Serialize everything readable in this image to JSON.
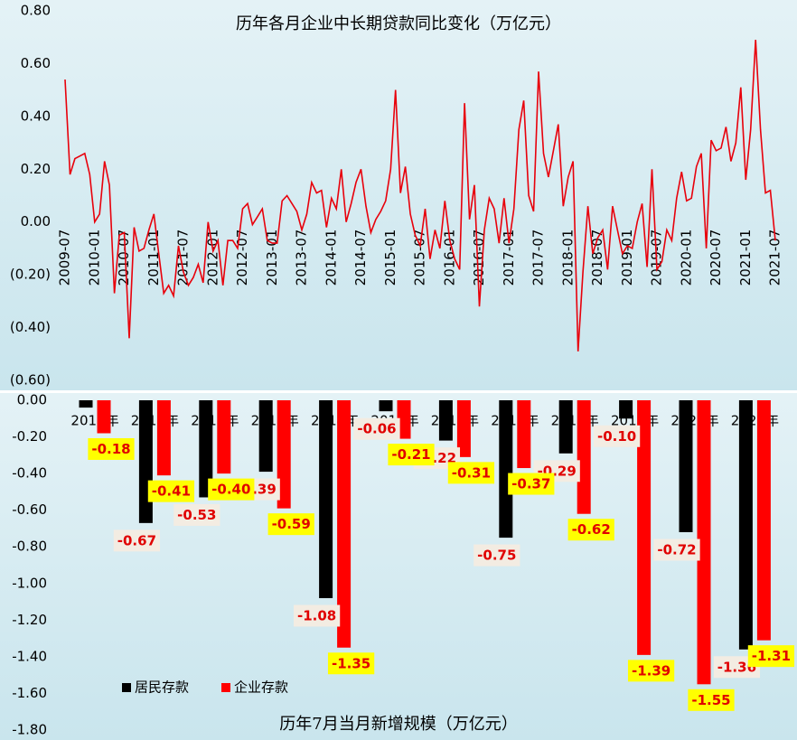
{
  "chart_data": [
    {
      "type": "line",
      "title": "历年各月企业中长期贷款同比变化（万亿元）",
      "color": "#e8000b",
      "categories": [
        "2009-07",
        null,
        null,
        null,
        null,
        null,
        "2010-01",
        null,
        null,
        null,
        null,
        null,
        "2010-07",
        null,
        null,
        null,
        null,
        null,
        "2011-01",
        null,
        null,
        null,
        null,
        null,
        "2011-07",
        null,
        null,
        null,
        null,
        null,
        "2012-01",
        null,
        null,
        null,
        null,
        null,
        "2012-07",
        null,
        null,
        null,
        null,
        null,
        "2013-01",
        null,
        null,
        null,
        null,
        null,
        "2013-07",
        null,
        null,
        null,
        null,
        null,
        "2014-01",
        null,
        null,
        null,
        null,
        null,
        "2014-07",
        null,
        null,
        null,
        null,
        null,
        "2015-01",
        null,
        null,
        null,
        null,
        null,
        "2015-07",
        null,
        null,
        null,
        null,
        null,
        "2016-01",
        null,
        null,
        null,
        null,
        null,
        "2016-07",
        null,
        null,
        null,
        null,
        null,
        "2017-01",
        null,
        null,
        null,
        null,
        null,
        "2017-07",
        null,
        null,
        null,
        null,
        null,
        "2018-01",
        null,
        null,
        null,
        null,
        null,
        "2018-07",
        null,
        null,
        null,
        null,
        null,
        "2019-01",
        null,
        null,
        null,
        null,
        null,
        "2019-07",
        null,
        null,
        null,
        null,
        null,
        "2020-01",
        null,
        null,
        null,
        null,
        null,
        "2020-07",
        null,
        null,
        null,
        null,
        null,
        "2021-01",
        null,
        null,
        null,
        null,
        null,
        "2021-07"
      ],
      "values": [
        0.54,
        0.18,
        0.24,
        0.25,
        0.26,
        0.18,
        0.0,
        0.03,
        0.23,
        0.14,
        -0.27,
        -0.05,
        -0.04,
        -0.44,
        -0.02,
        -0.11,
        -0.1,
        -0.03,
        0.03,
        -0.12,
        -0.27,
        -0.24,
        -0.28,
        -0.09,
        -0.19,
        -0.24,
        -0.21,
        -0.16,
        -0.23,
        0.0,
        -0.11,
        -0.07,
        -0.24,
        -0.07,
        -0.07,
        -0.1,
        0.05,
        0.07,
        -0.01,
        0.02,
        0.05,
        -0.07,
        -0.08,
        -0.08,
        0.08,
        0.1,
        0.07,
        0.04,
        -0.03,
        0.03,
        0.15,
        0.11,
        0.12,
        -0.02,
        0.09,
        0.05,
        0.2,
        0.0,
        0.07,
        0.15,
        0.2,
        0.06,
        -0.04,
        0.01,
        0.04,
        0.08,
        0.2,
        0.5,
        0.11,
        0.21,
        0.03,
        -0.05,
        -0.09,
        0.05,
        -0.14,
        -0.03,
        -0.1,
        0.08,
        -0.07,
        -0.14,
        -0.18,
        0.45,
        0.01,
        0.14,
        -0.32,
        -0.03,
        0.09,
        0.05,
        -0.08,
        0.09,
        -0.08,
        0.05,
        0.35,
        0.46,
        0.1,
        0.04,
        0.57,
        0.26,
        0.17,
        0.27,
        0.37,
        0.06,
        0.17,
        0.23,
        -0.49,
        -0.19,
        0.06,
        -0.12,
        -0.06,
        -0.03,
        -0.18,
        0.06,
        -0.03,
        -0.12,
        -0.09,
        -0.1,
        0.0,
        0.07,
        -0.17,
        0.2,
        -0.18,
        -0.15,
        -0.03,
        -0.07,
        0.09,
        0.19,
        0.08,
        0.09,
        0.21,
        0.26,
        -0.1,
        0.31,
        0.27,
        0.28,
        0.36,
        0.23,
        0.3,
        0.51,
        0.16,
        0.35,
        0.69,
        0.35,
        0.11,
        0.12,
        -0.07
      ],
      "ylim": [
        -0.6,
        0.8
      ],
      "yticks": [
        {
          "value": -0.6,
          "label": "(0.60)"
        },
        {
          "value": -0.4,
          "label": "(0.40)"
        },
        {
          "value": -0.2,
          "label": "(0.20)"
        },
        {
          "value": 0,
          "label": "0.00"
        },
        {
          "value": 0.2,
          "label": "0.20"
        },
        {
          "value": 0.4,
          "label": "0.40"
        },
        {
          "value": 0.6,
          "label": "0.60"
        },
        {
          "value": 0.8,
          "label": "0.80"
        }
      ]
    },
    {
      "type": "bar",
      "title": "历年7月当月新增规模（万亿元）",
      "legend": "lower left",
      "categories": [
        "2010年",
        "2011年",
        "2012年",
        "2013年",
        "2014年",
        "2015年",
        "2016年",
        "2017年",
        "2018年",
        "2019年",
        "2020年",
        "2021年"
      ],
      "series": [
        {
          "name": "居民存款",
          "color": "#000000",
          "values": [
            -0.04,
            -0.67,
            -0.53,
            -0.39,
            -1.08,
            -0.06,
            -0.22,
            -0.75,
            -0.29,
            -0.1,
            -0.72,
            -1.36
          ],
          "value_labels": [
            null,
            "-0.67",
            "-0.53",
            "-0.39",
            "-1.08",
            "-0.06",
            "-0.22",
            "-0.75",
            "-0.29",
            "-0.10",
            "-0.72",
            "-1.36"
          ]
        },
        {
          "name": "企业存款",
          "color": "#ff0000",
          "values": [
            -0.18,
            -0.41,
            -0.4,
            -0.59,
            -1.35,
            -0.21,
            -0.31,
            -0.37,
            -0.62,
            -1.39,
            -1.55,
            -1.31
          ],
          "value_labels": [
            "-0.18",
            "-0.41",
            "-0.40",
            "-0.59",
            "-1.35",
            "-0.21",
            "-0.31",
            "-0.37",
            "-0.62",
            "-1.39",
            "-1.55",
            "-1.31"
          ]
        }
      ],
      "ylim": [
        -1.8,
        0
      ],
      "yticks": [
        {
          "value": -1.8,
          "label": "-1.80"
        },
        {
          "value": -1.6,
          "label": "-1.60"
        },
        {
          "value": -1.4,
          "label": "-1.40"
        },
        {
          "value": -1.2,
          "label": "-1.20"
        },
        {
          "value": -1.0,
          "label": "-1.00"
        },
        {
          "value": -0.8,
          "label": "-0.80"
        },
        {
          "value": -0.6,
          "label": "-0.60"
        },
        {
          "value": -0.4,
          "label": "-0.40"
        },
        {
          "value": -0.2,
          "label": "-0.20"
        },
        {
          "value": 0,
          "label": "0.00"
        }
      ]
    }
  ]
}
